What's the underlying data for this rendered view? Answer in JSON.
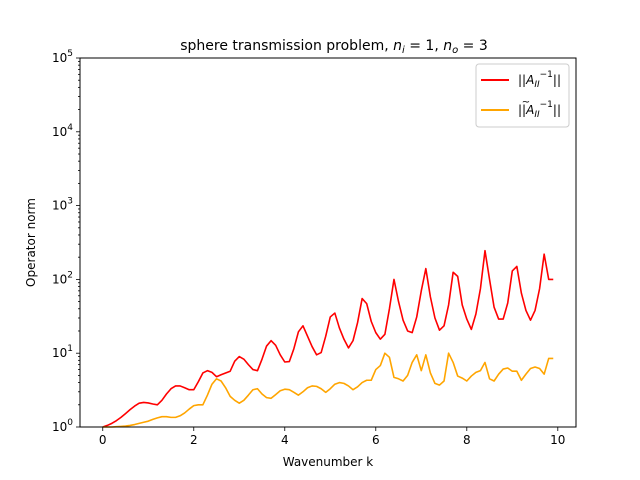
{
  "chart_data": {
    "type": "line",
    "title": "sphere transmission problem, n_i = 1, n_o = 3",
    "title_parts": {
      "prefix": "sphere transmission problem, ",
      "var1": "n",
      "sub1": "i",
      "eq1": " = 1, ",
      "var2": "n",
      "sub2": "o",
      "eq2": " = 3"
    },
    "xlabel": "Wavenumber k",
    "ylabel": "Operator norm",
    "xlim": [
      -0.5,
      10.4
    ],
    "ylim": [
      1,
      100000
    ],
    "yscale": "log",
    "grid": false,
    "legend_position": "top-right",
    "x_ticks": [
      0,
      2,
      4,
      6,
      8,
      10
    ],
    "x_tick_labels": [
      "0",
      "2",
      "4",
      "6",
      "8",
      "10"
    ],
    "y_ticks": [
      1,
      10,
      100,
      1000,
      10000,
      100000
    ],
    "y_tick_labels": [
      {
        "base": "10",
        "exp": "0"
      },
      {
        "base": "10",
        "exp": "1"
      },
      {
        "base": "10",
        "exp": "2"
      },
      {
        "base": "10",
        "exp": "3"
      },
      {
        "base": "10",
        "exp": "4"
      },
      {
        "base": "10",
        "exp": "5"
      }
    ],
    "series": [
      {
        "name": "||A_II^-1||",
        "legend": {
          "pre": "||",
          "var": "A",
          "sub": "II",
          "sup": "−1",
          "post": "||",
          "tilde": false
        },
        "color": "#ff0000",
        "x": [
          0,
          0.1,
          0.2,
          0.3,
          0.4,
          0.5,
          0.6,
          0.7,
          0.8,
          0.9,
          1.0,
          1.1,
          1.2,
          1.3,
          1.4,
          1.5,
          1.6,
          1.7,
          1.8,
          1.9,
          2.0,
          2.1,
          2.2,
          2.3,
          2.4,
          2.5,
          2.6,
          2.7,
          2.8,
          2.9,
          3.0,
          3.1,
          3.2,
          3.3,
          3.4,
          3.5,
          3.6,
          3.7,
          3.8,
          3.9,
          4.0,
          4.1,
          4.2,
          4.3,
          4.4,
          4.5,
          4.6,
          4.7,
          4.8,
          4.9,
          5.0,
          5.1,
          5.2,
          5.3,
          5.4,
          5.5,
          5.6,
          5.7,
          5.8,
          5.9,
          6.0,
          6.1,
          6.2,
          6.3,
          6.4,
          6.5,
          6.6,
          6.7,
          6.8,
          6.9,
          7.0,
          7.1,
          7.2,
          7.3,
          7.4,
          7.5,
          7.6,
          7.7,
          7.8,
          7.9,
          8.0,
          8.1,
          8.2,
          8.3,
          8.4,
          8.5,
          8.6,
          8.7,
          8.8,
          8.9,
          9.0,
          9.1,
          9.2,
          9.3,
          9.4,
          9.5,
          9.6,
          9.7,
          9.8,
          9.9
        ],
        "y": [
          1.0,
          1.05,
          1.12,
          1.22,
          1.35,
          1.52,
          1.72,
          1.92,
          2.1,
          2.15,
          2.12,
          2.05,
          2.0,
          2.3,
          2.8,
          3.3,
          3.6,
          3.6,
          3.4,
          3.2,
          3.2,
          4.1,
          5.4,
          5.8,
          5.5,
          4.8,
          5.1,
          5.4,
          5.7,
          7.8,
          9.0,
          8.3,
          7.0,
          6.0,
          5.8,
          8.3,
          12.5,
          14.8,
          12.8,
          9.5,
          7.6,
          7.7,
          11.5,
          19.5,
          23.5,
          17.0,
          12.3,
          9.5,
          10.2,
          17.0,
          31.0,
          35.0,
          22.0,
          15.5,
          11.8,
          14.8,
          26.0,
          55.0,
          47.0,
          27.0,
          19.0,
          15.5,
          18.0,
          40.0,
          100.0,
          50.0,
          28.0,
          20.0,
          19.0,
          31.0,
          70.0,
          140.0,
          58.0,
          30.0,
          20.5,
          23.5,
          45.0,
          125.0,
          110.0,
          45.0,
          29.0,
          21.0,
          34.0,
          75.0,
          245.0,
          100.0,
          42.0,
          29.0,
          29.0,
          48.0,
          130.0,
          150.0,
          65.0,
          38.0,
          28.0,
          38.0,
          75.0,
          220.0,
          100.0,
          100.0
        ]
      },
      {
        "name": "||Ã_II^-1||",
        "legend": {
          "pre": "||",
          "var": "A",
          "sub": "II",
          "sup": "−1",
          "post": "||",
          "tilde": true
        },
        "color": "#ffa500",
        "x": [
          0,
          0.1,
          0.2,
          0.3,
          0.4,
          0.5,
          0.6,
          0.7,
          0.8,
          0.9,
          1.0,
          1.1,
          1.2,
          1.3,
          1.4,
          1.5,
          1.6,
          1.7,
          1.8,
          1.9,
          2.0,
          2.1,
          2.2,
          2.3,
          2.4,
          2.5,
          2.6,
          2.7,
          2.8,
          2.9,
          3.0,
          3.1,
          3.2,
          3.3,
          3.4,
          3.5,
          3.6,
          3.7,
          3.8,
          3.9,
          4.0,
          4.1,
          4.2,
          4.3,
          4.4,
          4.5,
          4.6,
          4.7,
          4.8,
          4.9,
          5.0,
          5.1,
          5.2,
          5.3,
          5.4,
          5.5,
          5.6,
          5.7,
          5.8,
          5.9,
          6.0,
          6.1,
          6.2,
          6.3,
          6.4,
          6.5,
          6.6,
          6.7,
          6.8,
          6.9,
          7.0,
          7.1,
          7.2,
          7.3,
          7.4,
          7.5,
          7.6,
          7.7,
          7.8,
          7.9,
          8.0,
          8.1,
          8.2,
          8.3,
          8.4,
          8.5,
          8.6,
          8.7,
          8.8,
          8.9,
          9.0,
          9.1,
          9.2,
          9.3,
          9.4,
          9.5,
          9.6,
          9.7,
          9.8,
          9.9
        ],
        "y": [
          1.0,
          1.0,
          1.0,
          1.01,
          1.02,
          1.03,
          1.05,
          1.08,
          1.12,
          1.16,
          1.2,
          1.27,
          1.33,
          1.38,
          1.38,
          1.35,
          1.35,
          1.42,
          1.55,
          1.75,
          1.95,
          2.0,
          2.0,
          2.7,
          3.8,
          4.5,
          4.2,
          3.4,
          2.6,
          2.3,
          2.1,
          2.3,
          2.7,
          3.2,
          3.3,
          2.8,
          2.5,
          2.45,
          2.75,
          3.1,
          3.25,
          3.2,
          2.95,
          2.7,
          3.0,
          3.4,
          3.6,
          3.55,
          3.3,
          2.95,
          3.3,
          3.8,
          4.0,
          3.9,
          3.6,
          3.2,
          3.5,
          4.0,
          4.3,
          4.3,
          6.0,
          6.8,
          10.0,
          8.8,
          4.7,
          4.5,
          4.2,
          5.0,
          7.5,
          9.5,
          5.8,
          9.5,
          5.4,
          3.9,
          3.7,
          4.2,
          10.0,
          7.5,
          4.9,
          4.6,
          4.2,
          4.9,
          5.5,
          5.8,
          7.5,
          4.5,
          4.2,
          5.2,
          6.1,
          6.3,
          5.7,
          5.7,
          4.3,
          5.2,
          6.2,
          6.5,
          6.2,
          5.2,
          8.5,
          8.5
        ]
      }
    ]
  }
}
